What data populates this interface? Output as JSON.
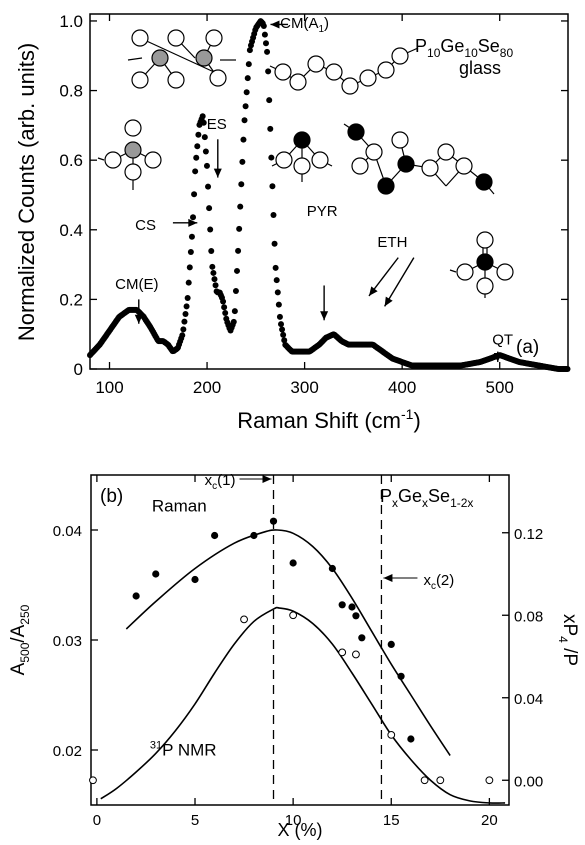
{
  "chart_data": [
    {
      "type": "line",
      "panel_label": "(a)",
      "title": "P10Ge10Se80 glass",
      "sample_name": {
        "base": "P",
        "sub1": "10",
        "mid1": "Ge",
        "sub2": "10",
        "mid2": "Se",
        "sub3": "80"
      },
      "sample_suffix": "glass",
      "xlabel": {
        "base": "Raman Shift (cm",
        "sup": "-1",
        "tail": ")"
      },
      "ylabel": "Normalized Counts (arb. units)",
      "xlim": [
        80,
        570
      ],
      "ylim": [
        0,
        1.02
      ],
      "xticks": [
        100,
        200,
        300,
        400,
        500
      ],
      "yticks": [
        "0",
        "0.2",
        "0.4",
        "0.6",
        "0.8",
        "1.0"
      ],
      "grid": false,
      "series": [
        {
          "x": [
            80,
            90,
            100,
            110,
            120,
            128,
            135,
            142,
            150,
            155,
            160,
            165,
            170,
            175,
            180,
            185,
            188,
            192,
            196,
            200,
            205,
            210,
            213,
            216,
            220,
            224,
            228,
            232,
            238,
            244,
            250,
            255,
            258,
            262,
            266,
            270,
            275,
            280,
            287,
            295,
            305,
            315,
            322,
            330,
            338,
            345,
            352,
            360,
            370,
            380,
            390,
            400,
            410,
            420,
            440,
            460,
            480,
            490,
            500,
            510,
            520,
            540,
            560,
            570
          ],
          "y": [
            0.04,
            0.07,
            0.11,
            0.15,
            0.17,
            0.17,
            0.15,
            0.12,
            0.08,
            0.08,
            0.07,
            0.05,
            0.06,
            0.1,
            0.2,
            0.4,
            0.58,
            0.7,
            0.73,
            0.58,
            0.3,
            0.22,
            0.22,
            0.2,
            0.14,
            0.11,
            0.14,
            0.35,
            0.7,
            0.92,
            0.98,
            1.0,
            0.99,
            0.9,
            0.6,
            0.3,
            0.14,
            0.07,
            0.05,
            0.05,
            0.05,
            0.07,
            0.09,
            0.1,
            0.08,
            0.07,
            0.07,
            0.07,
            0.07,
            0.05,
            0.03,
            0.02,
            0.01,
            0.01,
            0.01,
            0.01,
            0.02,
            0.03,
            0.04,
            0.03,
            0.02,
            0.01,
            0.0,
            0.0
          ]
        }
      ],
      "annotations": [
        {
          "text": "CM(E)",
          "kind": "plain",
          "x": 128,
          "y": 0.23
        },
        {
          "text_main": "CM(A",
          "text_sub": "1",
          "text_tail": ")",
          "kind": "sub",
          "x": 300,
          "y": 0.98
        },
        {
          "text": "ES",
          "kind": "plain",
          "x": 210,
          "y": 0.69
        },
        {
          "text": "CS",
          "kind": "plain",
          "x": 137,
          "y": 0.4
        },
        {
          "text": "PYR",
          "kind": "plain",
          "x": 318,
          "y": 0.44
        },
        {
          "text": "ETH",
          "kind": "plain",
          "x": 390,
          "y": 0.35
        },
        {
          "text": "QT",
          "kind": "plain",
          "x": 503,
          "y": 0.07
        }
      ],
      "arrows": [
        {
          "from": [
            130,
            0.2
          ],
          "to": [
            130,
            0.13
          ]
        },
        {
          "from": [
            283,
            0.99
          ],
          "to": [
            265,
            0.99
          ]
        },
        {
          "from": [
            211,
            0.66
          ],
          "to": [
            211,
            0.55
          ]
        },
        {
          "from": [
            165,
            0.42
          ],
          "to": [
            190,
            0.42
          ]
        },
        {
          "from": [
            320,
            0.24
          ],
          "to": [
            320,
            0.14
          ]
        },
        {
          "from": [
            396,
            0.32
          ],
          "to": [
            366,
            0.21
          ]
        },
        {
          "from": [
            412,
            0.32
          ],
          "to": [
            382,
            0.18
          ]
        },
        {
          "from": [
            498,
            0.05
          ],
          "to": [
            498,
            0.02
          ]
        }
      ],
      "structure_icons": [
        "corner-sharing-tetrahedra",
        "selenium-chain",
        "corner-sharing-unit",
        "pyramidal-unit",
        "ethylene-like-unit",
        "quasi-tetrahedral-unit"
      ],
      "marker": "filled-circle"
    },
    {
      "type": "scatter",
      "panel_label": "(b)",
      "xlabel": "X (%)",
      "ylabel_left": {
        "base": "A",
        "sub1": "500",
        "mid": "/A",
        "sub2": "250"
      },
      "ylabel_right": {
        "pre": "xP",
        "sub": "4",
        "post": " /P"
      },
      "xlim": [
        -0.3,
        21
      ],
      "ylim_left": [
        0.015,
        0.045
      ],
      "ylim_right": [
        -0.012,
        0.148
      ],
      "xticks": [
        0,
        5,
        10,
        15,
        20
      ],
      "yticks_left": [
        "0.02",
        "0.03",
        "0.04"
      ],
      "yticks_right": [
        "0.00",
        "0.04",
        "0.08",
        "0.12"
      ],
      "yticks_right_values": [
        0.0,
        0.04,
        0.08,
        0.12
      ],
      "grid": false,
      "composition_label": {
        "p": "P",
        "sx1": "x",
        "ge": "Ge",
        "sx2": "x",
        "se": "Se",
        "sub": "1-2x"
      },
      "vlines": [
        {
          "x": 9.0,
          "label_main": "x",
          "label_sub": "c",
          "label_tail": "(1)"
        },
        {
          "x": 14.5,
          "label_main": "x",
          "label_sub": "c",
          "label_tail": "(2)"
        }
      ],
      "series": [
        {
          "name": "Raman",
          "axis": "left",
          "marker": "filled",
          "x": [
            2.0,
            3.0,
            5.0,
            6.0,
            8.0,
            9.0,
            10.0,
            12.0,
            12.5,
            13.0,
            13.2,
            13.5,
            15.0,
            15.5,
            16.0
          ],
          "y": [
            0.034,
            0.036,
            0.0355,
            0.0395,
            0.0395,
            0.0408,
            0.037,
            0.0365,
            0.0332,
            0.033,
            0.0322,
            0.0302,
            0.0296,
            0.0267,
            0.021
          ]
        },
        {
          "name_main": "P NMR",
          "name_sup": "31",
          "axis": "right",
          "marker": "open",
          "x": [
            -0.2,
            7.5,
            10.0,
            12.5,
            13.2,
            15.0,
            16.7,
            17.5,
            20.0
          ],
          "y": [
            0.0,
            0.078,
            0.08,
            0.062,
            0.061,
            0.022,
            0.0,
            0.0,
            0.0
          ]
        }
      ],
      "fit_curves": [
        {
          "axis": "left",
          "x": [
            1.5,
            3,
            5,
            7,
            8.5,
            9.2,
            10,
            11,
            12,
            13,
            14,
            15,
            16,
            17,
            18
          ],
          "y": [
            0.031,
            0.0335,
            0.0365,
            0.0388,
            0.0398,
            0.04,
            0.0397,
            0.0385,
            0.0365,
            0.0338,
            0.0308,
            0.0278,
            0.025,
            0.0222,
            0.0195
          ]
        },
        {
          "axis": "right",
          "x": [
            0.2,
            1,
            2,
            3,
            4,
            5,
            6,
            7,
            8,
            9,
            9.3,
            10,
            11,
            12,
            13,
            14,
            15,
            16,
            17,
            18,
            19,
            20,
            20.8
          ],
          "y": [
            -0.009,
            -0.004,
            0.004,
            0.013,
            0.024,
            0.037,
            0.052,
            0.066,
            0.077,
            0.083,
            0.0835,
            0.082,
            0.076,
            0.066,
            0.052,
            0.037,
            0.022,
            0.01,
            0.0,
            -0.007,
            -0.01,
            -0.011,
            -0.011
          ]
        }
      ],
      "labels": [
        {
          "text": "Raman",
          "x": 4.2,
          "axis": "left",
          "y": 0.0417
        },
        {
          "text": "P NMR",
          "sup": "31",
          "x": 4.4,
          "axis": "left",
          "y": 0.0195
        }
      ]
    }
  ]
}
